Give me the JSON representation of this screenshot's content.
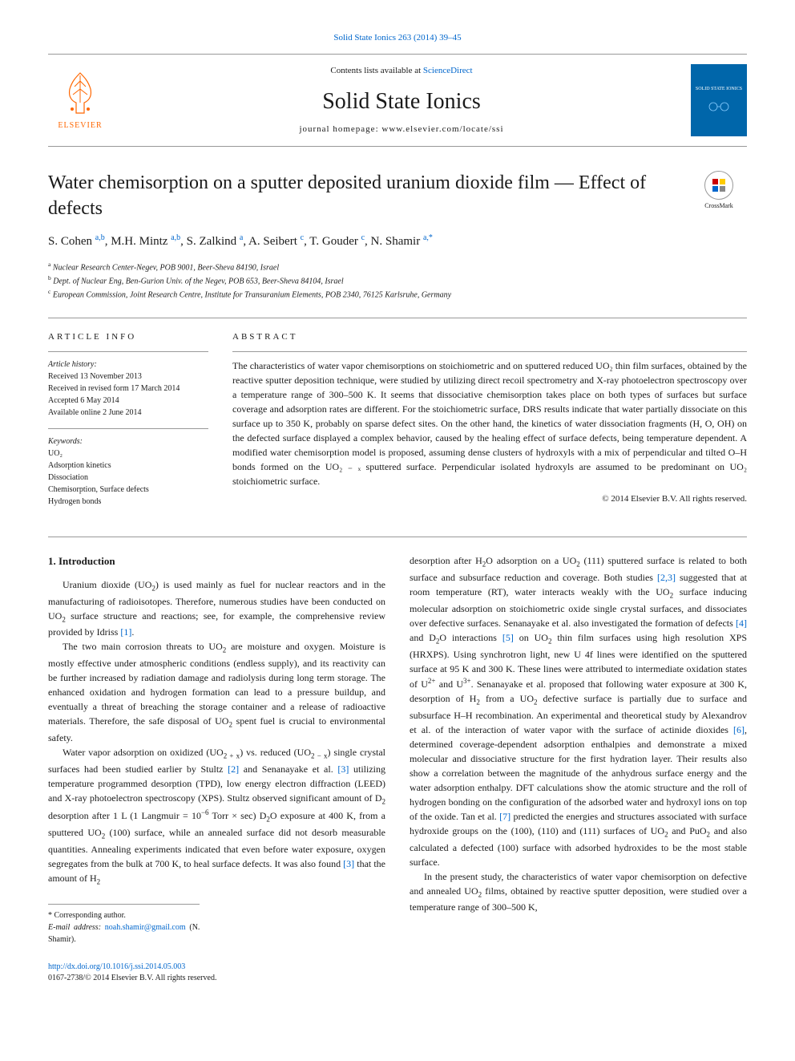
{
  "top_citation": "Solid State Ionics 263 (2014) 39–45",
  "header": {
    "contents_prefix": "Contents lists available at ",
    "contents_link": "ScienceDirect",
    "journal_name": "Solid State Ionics",
    "homepage_prefix": "journal homepage: ",
    "homepage_url": "www.elsevier.com/locate/ssi",
    "publisher": "ELSEVIER",
    "cover_title": "SOLID STATE IONICS"
  },
  "crossmark_label": "CrossMark",
  "title": "Water chemisorption on a sputter deposited uranium dioxide film — Effect of defects",
  "authors_html": "S. Cohen <sup>a,b</sup>, M.H. Mintz <sup>a,b</sup>, S. Zalkind <sup>a</sup>, A. Seibert <sup>c</sup>, T. Gouder <sup>c</sup>, N. Shamir <sup>a,*</sup>",
  "affiliations": [
    {
      "sup": "a",
      "text": "Nuclear Research Center-Negev, POB 9001, Beer-Sheva 84190, Israel"
    },
    {
      "sup": "b",
      "text": "Dept. of Nuclear Eng, Ben-Gurion Univ. of the Negev, POB 653, Beer-Sheva 84104, Israel"
    },
    {
      "sup": "c",
      "text": "European Commission, Joint Research Centre, Institute for Transuranium Elements, POB 2340, 76125 Karlsruhe, Germany"
    }
  ],
  "article_info": {
    "heading": "ARTICLE INFO",
    "history_label": "Article history:",
    "history": [
      "Received 13 November 2013",
      "Received in revised form 17 March 2014",
      "Accepted 6 May 2014",
      "Available online 2 June 2014"
    ],
    "keywords_label": "Keywords:",
    "keywords": [
      "UO₂",
      "Adsorption kinetics",
      "Dissociation",
      "Chemisorption, Surface defects",
      "Hydrogen bonds"
    ]
  },
  "abstract": {
    "heading": "ABSTRACT",
    "text": "The characteristics of water vapor chemisorptions on stoichiometric and on sputtered reduced UO₂ thin film surfaces, obtained by the reactive sputter deposition technique, were studied by utilizing direct recoil spectrometry and X-ray photoelectron spectroscopy over a temperature range of 300–500 K. It seems that dissociative chemisorption takes place on both types of surfaces but surface coverage and adsorption rates are different. For the stoichiometric surface, DRS results indicate that water partially dissociate on this surface up to 350 K, probably on sparse defect sites. On the other hand, the kinetics of water dissociation fragments (H, O, OH) on the defected surface displayed a complex behavior, caused by the healing effect of surface defects, being temperature dependent. A modified water chemisorption model is proposed, assuming dense clusters of hydroxyls with a mix of perpendicular and tilted O–H bonds formed on the UO₂ ₋ ₓ sputtered surface. Perpendicular isolated hydroxyls are assumed to be predominant on UO₂ stoichiometric surface.",
    "copyright": "© 2014 Elsevier B.V. All rights reserved."
  },
  "body": {
    "section1_heading": "1. Introduction",
    "left_col_html": "<p>Uranium dioxide (UO<sub>2</sub>) is used mainly as fuel for nuclear reactors and in the manufacturing of radioisotopes. Therefore, numerous studies have been conducted on UO<sub>2</sub> surface structure and reactions; see, for example, the comprehensive review provided by Idriss <span class='ref-link'>[1]</span>.</p><p>The two main corrosion threats to UO<sub>2</sub> are moisture and oxygen. Moisture is mostly effective under atmospheric conditions (endless supply), and its reactivity can be further increased by radiation damage and radiolysis during long term storage. The enhanced oxidation and hydrogen formation can lead to a pressure buildup, and eventually a threat of breaching the storage container and a release of radioactive materials. Therefore, the safe disposal of UO<sub>2</sub> spent fuel is crucial to environmental safety.</p><p>Water vapor adsorption on oxidized (UO<sub>2 + x</sub>) vs. reduced (UO<sub>2 − x</sub>) single crystal surfaces had been studied earlier by Stultz <span class='ref-link'>[2]</span> and Senanayake et al. <span class='ref-link'>[3]</span> utilizing temperature programmed desorption (TPD), low energy electron diffraction (LEED) and X-ray photoelectron spectroscopy (XPS). Stultz observed significant amount of D<sub>2</sub> desorption after 1 L (1 Langmuir = 10<sup>−6</sup> Torr × sec) D<sub>2</sub>O exposure at 400 K, from a sputtered UO<sub>2</sub> (100) surface, while an annealed surface did not desorb measurable quantities. Annealing experiments indicated that even before water exposure, oxygen segregates from the bulk at 700 K, to heal surface defects. It was also found <span class='ref-link'>[3]</span> that the amount of H<sub>2</sub></p>",
    "right_col_html": "<p style='text-indent:0'>desorption after H<sub>2</sub>O adsorption on a UO<sub>2</sub> (111) sputtered surface is related to both surface and subsurface reduction and coverage. Both studies <span class='ref-link'>[2,3]</span> suggested that at room temperature (RT), water interacts weakly with the UO<sub>2</sub> surface inducing molecular adsorption on stoichiometric oxide single crystal surfaces, and dissociates over defective surfaces. Senanayake et al. also investigated the formation of defects <span class='ref-link'>[4]</span> and D<sub>2</sub>O interactions <span class='ref-link'>[5]</span> on UO<sub>2</sub> thin film surfaces using high resolution XPS (HRXPS). Using synchrotron light, new U 4f lines were identified on the sputtered surface at 95 K and 300 K. These lines were attributed to intermediate oxidation states of U<sup>2+</sup> and U<sup>3+</sup>. Senanayake et al. proposed that following water exposure at 300 K, desorption of H<sub>2</sub> from a UO<sub>2</sub> defective surface is partially due to surface and subsurface H–H recombination. An experimental and theoretical study by Alexandrov et al. of the interaction of water vapor with the surface of actinide dioxides <span class='ref-link'>[6]</span>, determined coverage-dependent adsorption enthalpies and demonstrate a mixed molecular and dissociative structure for the first hydration layer. Their results also show a correlation between the magnitude of the anhydrous surface energy and the water adsorption enthalpy. DFT calculations show the atomic structure and the roll of hydrogen bonding on the configuration of the adsorbed water and hydroxyl ions on top of the oxide. Tan et al. <span class='ref-link'>[7]</span> predicted the energies and structures associated with surface hydroxide groups on the (100), (110) and (111) surfaces of UO<sub>2</sub> and PuO<sub>2</sub> and also calculated a defected (100) surface with adsorbed hydroxides to be the most stable surface.</p><p>In the present study, the characteristics of water vapor chemisorption on defective and annealed UO<sub>2</sub> films, obtained by reactive sputter deposition, were studied over a temperature range of 300–500 K,</p>"
  },
  "corresponding": {
    "label": "* Corresponding author.",
    "email_label": "E-mail address: ",
    "email": "noah.shamir@gmail.com",
    "email_suffix": " (N. Shamir)."
  },
  "footer": {
    "doi": "http://dx.doi.org/10.1016/j.ssi.2014.05.003",
    "issn_line": "0167-2738/© 2014 Elsevier B.V. All rights reserved."
  },
  "colors": {
    "link": "#0066cc",
    "elsevier_orange": "#ff6600",
    "cover_blue": "#0066aa",
    "rule": "#999999",
    "text": "#1a1a1a"
  }
}
